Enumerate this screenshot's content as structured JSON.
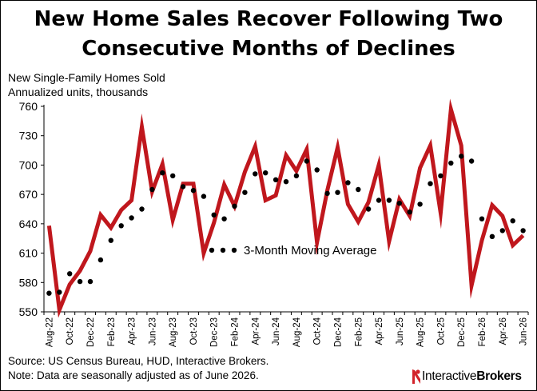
{
  "title_line1": "New Home Sales Recover Following Two",
  "title_line2": "Consecutive Months of Declines",
  "subtitle_line1": "New Single-Family Homes Sold",
  "subtitle_line2": "Annualized units, thousands",
  "source_note": "Source: US Census Bureau, HUD, Interactive Brokers.",
  "adjust_note": "Note: Data are seasonally adjusted as of June 2026.",
  "logo": {
    "word1": "Interactive",
    "word2": "Brokers",
    "icon": "interactivebrokers-logo-icon",
    "color": "#d2232a"
  },
  "colors": {
    "sales_line": "#c0171d",
    "moving_average": "#000000"
  },
  "chart_data": {
    "type": "line",
    "title": "New Home Sales Recover Following Two Consecutive Months of Declines",
    "ylabel": "New Single-Family Homes Sold, Annualized units, thousands",
    "ylim": [
      550,
      760
    ],
    "yticks": [
      550,
      580,
      610,
      640,
      670,
      700,
      730,
      760
    ],
    "grid": false,
    "legend_position": "center-right",
    "categories": [
      "Aug-22",
      "Sep-22",
      "Oct-22",
      "Nov-22",
      "Dec-22",
      "Jan-23",
      "Feb-23",
      "Mar-23",
      "Apr-23",
      "May-23",
      "Jun-23",
      "Jul-23",
      "Aug-23",
      "Sep-23",
      "Oct-23",
      "Nov-23",
      "Dec-23",
      "Jan-24",
      "Feb-24",
      "Mar-24",
      "Apr-24",
      "May-24",
      "Jun-24",
      "Jul-24",
      "Aug-24",
      "Sep-24",
      "Oct-24",
      "Nov-24",
      "Dec-24",
      "Jan-25",
      "Feb-25",
      "Mar-25",
      "Apr-25",
      "May-25",
      "Jun-25",
      "Jul-25",
      "Aug-25",
      "Sep-25",
      "Oct-25",
      "Nov-25",
      "Dec-25",
      "Jan-26",
      "Feb-26",
      "Mar-26",
      "Apr-26",
      "May-26",
      "Jun-26"
    ],
    "xtick_labels": [
      "Aug-22",
      "Oct-22",
      "Dec-22",
      "Feb-23",
      "Apr-23",
      "Jun-23",
      "Aug-23",
      "Oct-23",
      "Dec-23",
      "Feb-24",
      "Apr-24",
      "Jun-24",
      "Aug-24",
      "Oct-24",
      "Dec-24",
      "Feb-25",
      "Apr-25",
      "Jun-25",
      "Aug-25",
      "Oct-25",
      "Dec-25",
      "Feb-26",
      "Apr-26",
      "Jun-26"
    ],
    "series": [
      {
        "name": "",
        "style": "line",
        "values": [
          638,
          552,
          578,
          592,
          612,
          649,
          636,
          654,
          664,
          739,
          673,
          701,
          644,
          681,
          681,
          610,
          641,
          680,
          658,
          693,
          719,
          664,
          669,
          710,
          694,
          716,
          621,
          674,
          718,
          660,
          642,
          662,
          700,
          622,
          665,
          648,
          697,
          720,
          651,
          757,
          720,
          577,
          623,
          659,
          648,
          618,
          628
        ]
      },
      {
        "name": "3-Month Moving Average",
        "style": "dots",
        "values": [
          569,
          570,
          589,
          581,
          581,
          603,
          623,
          638,
          646,
          655,
          675,
          692,
          689,
          678,
          674,
          668,
          649,
          645,
          658,
          672,
          691,
          692,
          685,
          683,
          689,
          704,
          695,
          671,
          672,
          682,
          675,
          655,
          664,
          664,
          661,
          652,
          660,
          681,
          689,
          702,
          709,
          704,
          645,
          627,
          633,
          643,
          633
        ]
      }
    ]
  }
}
